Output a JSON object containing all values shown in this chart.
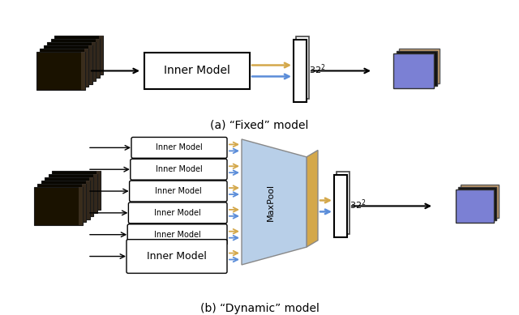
{
  "title_a": "(a) “Fixed” model",
  "title_b": "(b) “Dynamic” model",
  "bg_color": "#ffffff",
  "inner_model_color": "#ffffff",
  "inner_model_edge": "#000000",
  "maxpool_face_color": "#b8cfe8",
  "maxpool_side_color": "#d4a84b",
  "tall_rect_color": "#ffffff",
  "tall_rect_edge": "#000000",
  "arrow_color": "#000000",
  "blue_arrow": "#5b8dd9",
  "gold_arrow": "#d4a84b",
  "label_32": "32",
  "label_maxpool": "MaxPool",
  "label_inner": "Inner Model",
  "blue_sq_color": "#7b80d4",
  "dark_sq_color": "#111111",
  "tan_sq_color": "#c8a070",
  "photo_colors": [
    "#0a0800",
    "#181200",
    "#302208",
    "#504010",
    "#886020",
    "#c09030"
  ],
  "photo_bright_idx": 2
}
